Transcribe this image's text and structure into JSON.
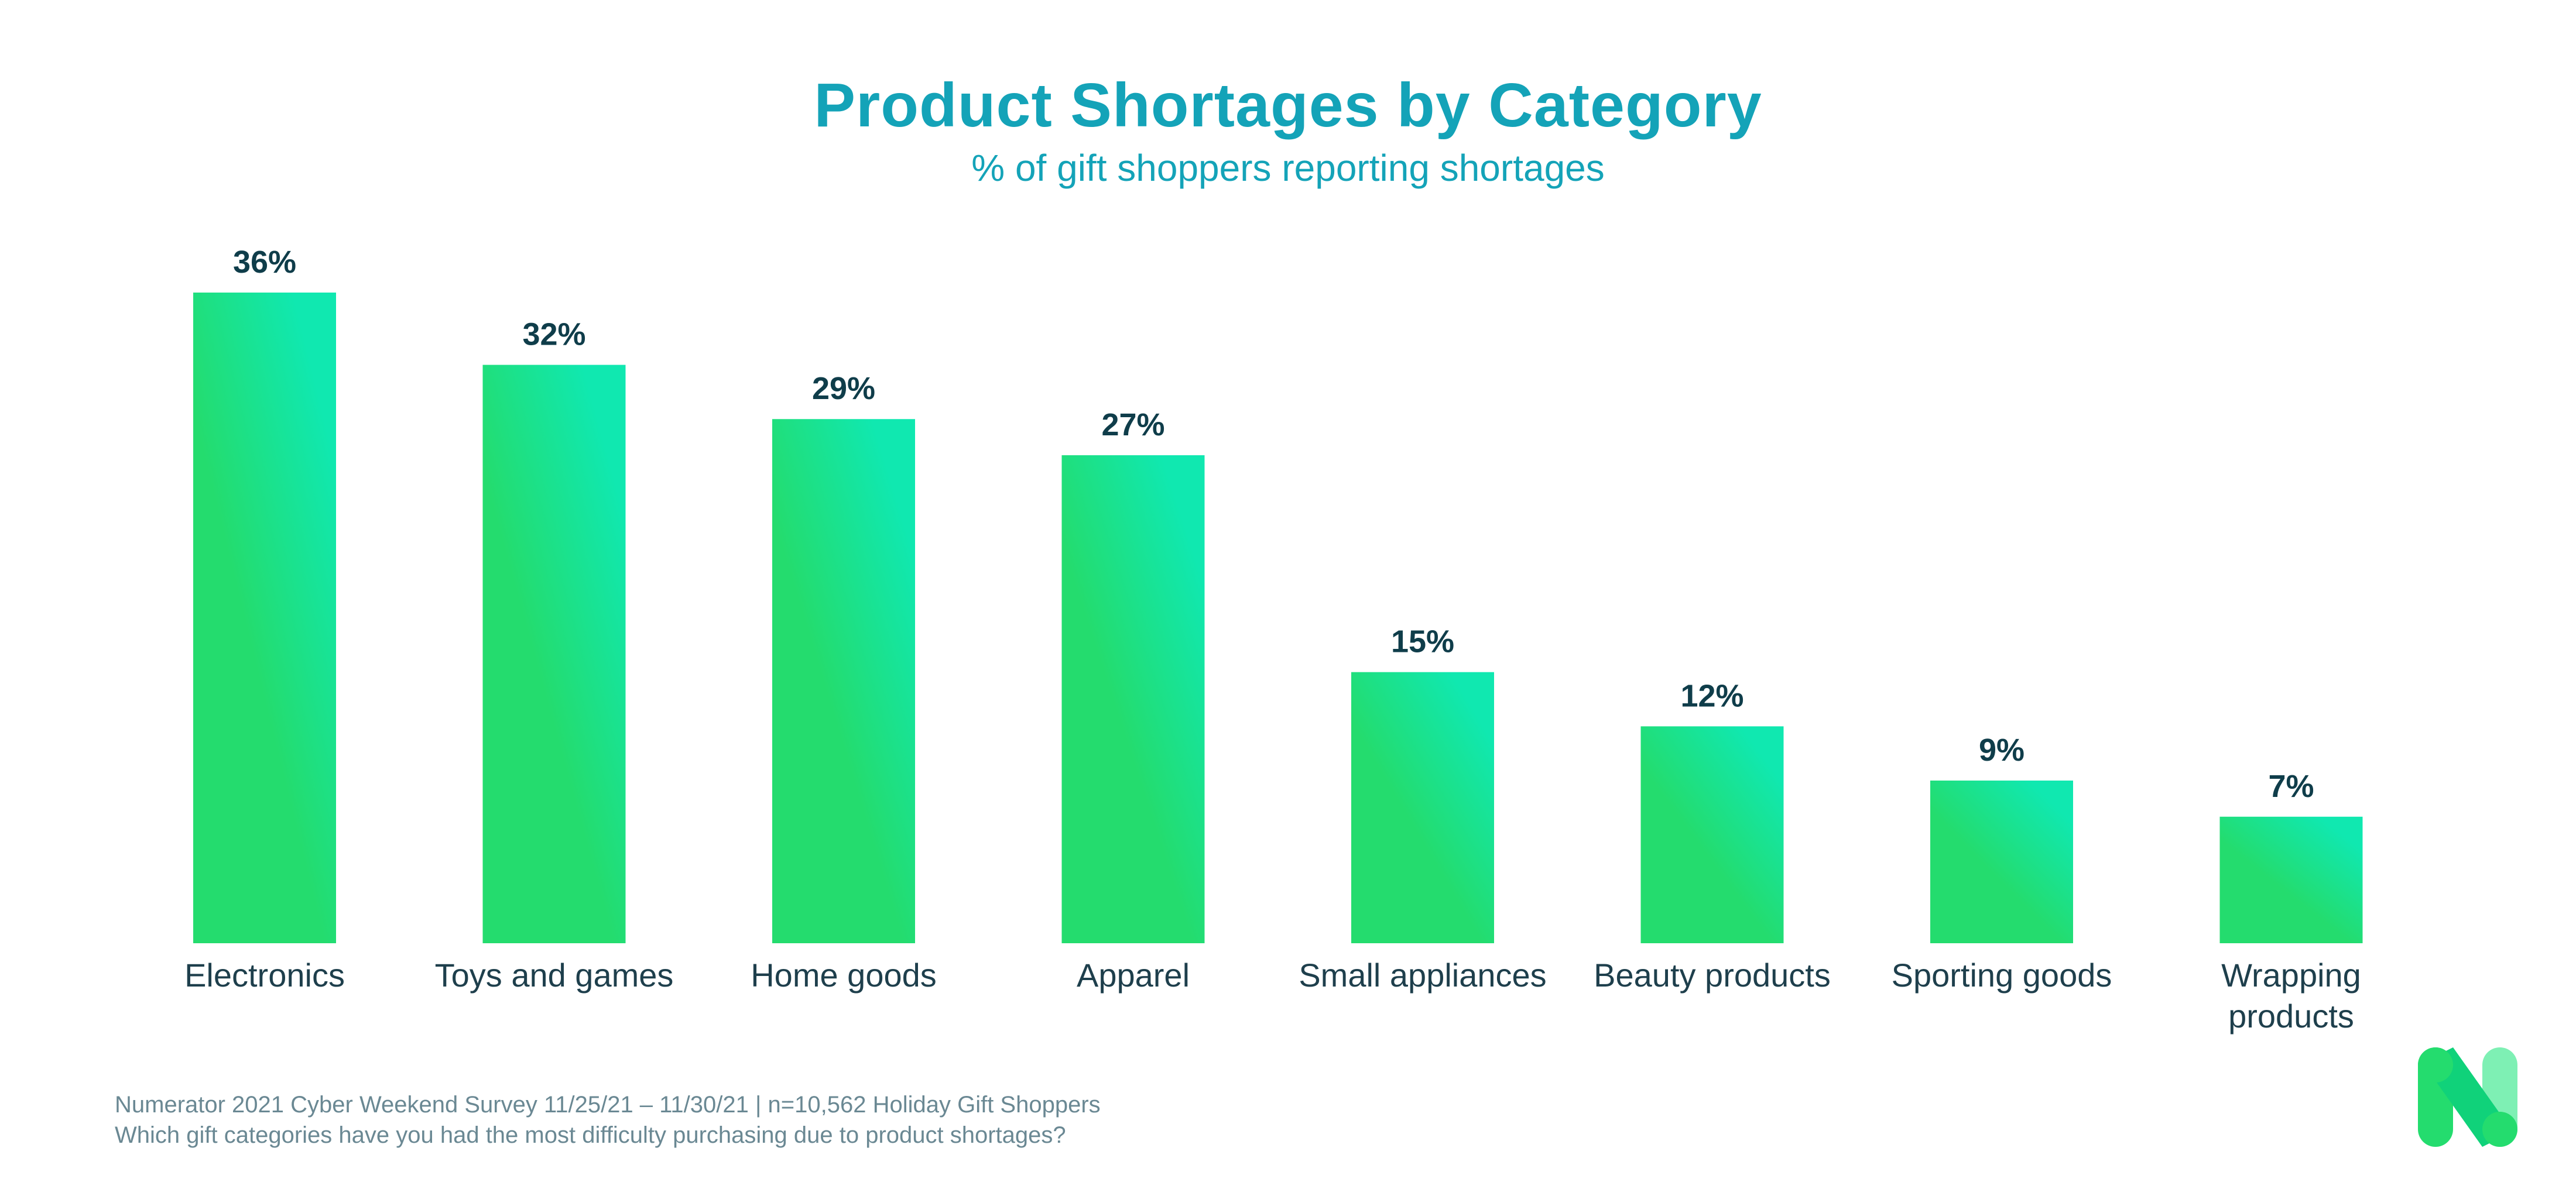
{
  "chart_data": {
    "type": "bar",
    "title": "Product Shortages by Category",
    "subtitle": "% of gift shoppers reporting shortages",
    "categories": [
      "Electronics",
      "Toys and games",
      "Home goods",
      "Apparel",
      "Small appliances",
      "Beauty products",
      "Sporting goods",
      "Wrapping products"
    ],
    "category_lines": [
      [
        "Electronics"
      ],
      [
        "Toys and games"
      ],
      [
        "Home goods"
      ],
      [
        "Apparel"
      ],
      [
        "Small appliances"
      ],
      [
        "Beauty products"
      ],
      [
        "Sporting goods"
      ],
      [
        "Wrapping",
        "products"
      ]
    ],
    "values": [
      36,
      32,
      29,
      27,
      15,
      12,
      9,
      7
    ],
    "value_labels": [
      "36%",
      "32%",
      "29%",
      "27%",
      "15%",
      "12%",
      "9%",
      "7%"
    ],
    "xlabel": "",
    "ylabel": "",
    "ylim": [
      0,
      36
    ],
    "grid": false,
    "colors": {
      "bar_top": "#10e8b0",
      "bar_bottom": "#24dc6e",
      "title": "#14a3b8",
      "value_text": "#0f3d4a"
    }
  },
  "footer": {
    "source_line": "Numerator 2021 Cyber Weekend Survey 11/25/21 – 11/30/21 | n=10,562 Holiday Gift Shoppers",
    "question_line": "Which gift categories have you had the most difficulty purchasing due to product shortages?"
  },
  "logo": {
    "icon": "numerator-n-logo-icon"
  }
}
